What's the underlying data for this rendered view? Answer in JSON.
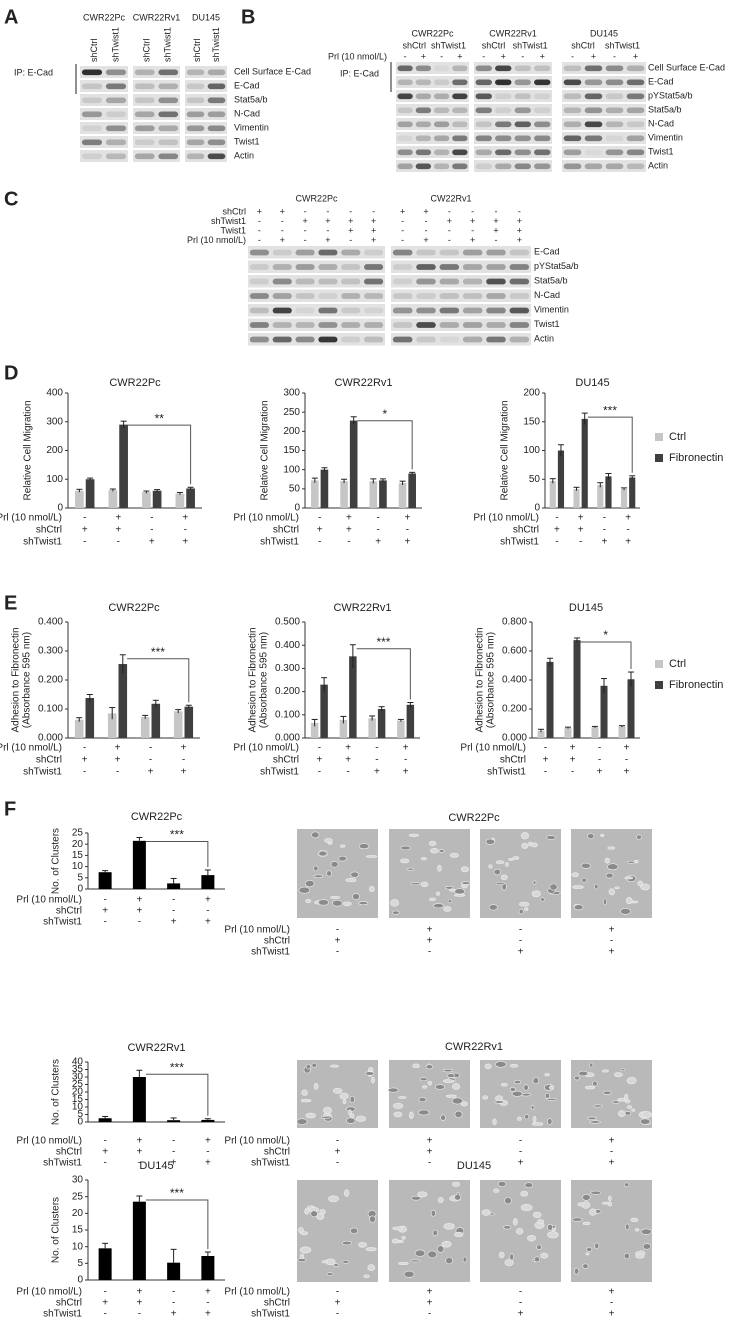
{
  "panel_labels": [
    "A",
    "B",
    "C",
    "D",
    "E",
    "F"
  ],
  "blot_a": {
    "cell_lines": [
      "CWR22Pc",
      "CWR22Rv1",
      "DU145"
    ],
    "lanes": [
      "shCtrl",
      "shTwist1"
    ],
    "ip_label": "IP: E-Cad",
    "bands": [
      "Cell Surface E-Cad",
      "E-Cad",
      "Stat5a/b",
      "N-Cad",
      "Vimentin",
      "Twist1",
      "Actin"
    ]
  },
  "blot_b": {
    "cell_lines": [
      "CWR22Pc",
      "CWR22Rv1",
      "DU145"
    ],
    "lanes": [
      "shCtrl",
      "shTwist1"
    ],
    "treatment_label": "Prl (10 nmol/L)",
    "treatment": [
      "-",
      "+",
      "-",
      "+"
    ],
    "ip_label": "IP: E-Cad",
    "bands": [
      "Cell Surface E-Cad",
      "E-Cad",
      "pYStat5a/b",
      "Stat5a/b",
      "N-Cad",
      "Vimentin",
      "Twist1",
      "Actin"
    ]
  },
  "blot_c": {
    "cell_lines": [
      "CWR22Pc",
      "CW22Rv1"
    ],
    "rows": [
      {
        "label": "shCtrl",
        "signs": [
          "+",
          "+",
          "-",
          "-",
          "-",
          "-"
        ]
      },
      {
        "label": "shTwist1",
        "signs": [
          "-",
          "-",
          "+",
          "+",
          "+",
          "+"
        ]
      },
      {
        "label": "Twist1",
        "signs": [
          "-",
          "-",
          "-",
          "-",
          "+",
          "+"
        ]
      },
      {
        "label": "Prl (10 nmol/L)",
        "signs": [
          "-",
          "+",
          "-",
          "+",
          "-",
          "+"
        ]
      }
    ],
    "bands": [
      "E-Cad",
      "pYStat5a/b",
      "Stat5a/b",
      "N-Cad",
      "Vimentin",
      "Twist1",
      "Actin"
    ]
  },
  "conditions": [
    {
      "label": "Prl (10 nmol/L)",
      "signs": [
        "-",
        "+",
        "-",
        "+"
      ]
    },
    {
      "label": "shCtrl",
      "signs": [
        "+",
        "+",
        "-",
        "-"
      ]
    },
    {
      "label": "shTwist1",
      "signs": [
        "-",
        "-",
        "+",
        "+"
      ]
    }
  ],
  "micrographs": {
    "titles": [
      "CWR22Pc",
      "CWR22Rv1",
      "DU145"
    ]
  },
  "chart_data": [
    {
      "type": "bar",
      "title": "CWR22Pc",
      "ylabel": "Relative Cell Migration",
      "ylim": [
        0,
        400
      ],
      "yticks": [
        0,
        100,
        200,
        300,
        400
      ],
      "significance": "**",
      "series": [
        {
          "color": "#c6c6c6",
          "values": [
            60,
            62,
            55,
            50
          ],
          "errors": [
            5,
            4,
            4,
            4
          ]
        },
        {
          "color": "#3f3f3f",
          "values": [
            100,
            290,
            60,
            68
          ],
          "errors": [
            4,
            12,
            4,
            4
          ]
        }
      ]
    },
    {
      "type": "bar",
      "title": "CWR22Rv1",
      "ylabel": "Relative Cell Migration",
      "ylim": [
        0,
        300
      ],
      "yticks": [
        0,
        50,
        100,
        150,
        200,
        250,
        300
      ],
      "significance": "*",
      "series": [
        {
          "color": "#c6c6c6",
          "values": [
            72,
            70,
            70,
            65
          ],
          "errors": [
            6,
            5,
            6,
            5
          ]
        },
        {
          "color": "#3f3f3f",
          "values": [
            100,
            228,
            72,
            90
          ],
          "errors": [
            5,
            10,
            4,
            3
          ]
        }
      ]
    },
    {
      "type": "bar",
      "title": "DU145",
      "ylabel": "Relative Cell Migration",
      "ylim": [
        0,
        200
      ],
      "yticks": [
        0,
        50,
        100,
        150,
        200
      ],
      "significance": "***",
      "series": [
        {
          "name": "Ctrl",
          "color": "#c6c6c6",
          "values": [
            47,
            33,
            40,
            33
          ],
          "errors": [
            4,
            3,
            4,
            2
          ]
        },
        {
          "name": "Fibronectin",
          "color": "#3f3f3f",
          "values": [
            100,
            155,
            55,
            53
          ],
          "errors": [
            10,
            10,
            5,
            3
          ]
        }
      ]
    },
    {
      "type": "bar",
      "title": "CWR22Pc",
      "ylabel": [
        "Adhesion to Fibronectin",
        "(Absorbance 595 nm)"
      ],
      "ylim": [
        0,
        0.4
      ],
      "yticks": [
        {
          "value": 0,
          "label": "0.000"
        },
        {
          "value": 0.1,
          "label": "0.100"
        },
        {
          "value": 0.2,
          "label": "0.200"
        },
        {
          "value": 0.3,
          "label": "0.300"
        },
        {
          "value": 0.4,
          "label": "0.400"
        }
      ],
      "significance": "***",
      "series": [
        {
          "color": "#c6c6c6",
          "values": [
            0.063,
            0.085,
            0.072,
            0.092
          ],
          "errors": [
            0.007,
            0.02,
            0.006,
            0.006
          ]
        },
        {
          "color": "#3f3f3f",
          "values": [
            0.138,
            0.255,
            0.118,
            0.108
          ],
          "errors": [
            0.012,
            0.032,
            0.012,
            0.005
          ]
        }
      ]
    },
    {
      "type": "bar",
      "title": "CWR22Rv1",
      "ylabel": [
        "Adhesion to Fibronectin",
        "(Absorbance 595 nm)"
      ],
      "ylim": [
        0,
        0.5
      ],
      "yticks": [
        {
          "value": 0,
          "label": "0.000"
        },
        {
          "value": 0.1,
          "label": "0.100"
        },
        {
          "value": 0.2,
          "label": "0.200"
        },
        {
          "value": 0.3,
          "label": "0.300"
        },
        {
          "value": 0.4,
          "label": "0.400"
        },
        {
          "value": 0.5,
          "label": "0.500"
        }
      ],
      "significance": "***",
      "series": [
        {
          "color": "#c6c6c6",
          "values": [
            0.065,
            0.078,
            0.085,
            0.075
          ],
          "errors": [
            0.015,
            0.015,
            0.01,
            0.005
          ]
        },
        {
          "color": "#3f3f3f",
          "values": [
            0.23,
            0.352,
            0.125,
            0.143
          ],
          "errors": [
            0.03,
            0.05,
            0.01,
            0.01
          ]
        }
      ]
    },
    {
      "type": "bar",
      "title": "DU145",
      "ylabel": [
        "Adhesion to Fibronectin",
        "(Absorbance 595 nm)"
      ],
      "ylim": [
        0,
        0.8
      ],
      "yticks": [
        {
          "value": 0,
          "label": "0.000"
        },
        {
          "value": 0.2,
          "label": "0.200"
        },
        {
          "value": 0.4,
          "label": "0.400"
        },
        {
          "value": 0.6,
          "label": "0.600"
        },
        {
          "value": 0.8,
          "label": "0.800"
        }
      ],
      "significance": "*",
      "series": [
        {
          "name": "Ctrl",
          "color": "#c6c6c6",
          "values": [
            0.05,
            0.07,
            0.075,
            0.08
          ],
          "errors": [
            0.01,
            0.005,
            0.005,
            0.005
          ]
        },
        {
          "name": "Fibronectin",
          "color": "#3f3f3f",
          "values": [
            0.525,
            0.675,
            0.36,
            0.405
          ],
          "errors": [
            0.025,
            0.015,
            0.05,
            0.05
          ]
        }
      ]
    },
    {
      "type": "bar",
      "title": "CWR22Pc",
      "ylabel": "No. of Clusters",
      "ylim": [
        0,
        25
      ],
      "yticks": [
        0,
        5,
        10,
        15,
        20,
        25
      ],
      "significance": "***",
      "series": [
        {
          "color": "#000000",
          "values": [
            7.5,
            21.5,
            2.5,
            6.2
          ],
          "errors": [
            0.7,
            1.5,
            2.2,
            2.3
          ]
        }
      ]
    },
    {
      "type": "bar",
      "title": "CWR22Rv1",
      "ylabel": "No. of Clusters",
      "ylim": [
        0,
        40
      ],
      "yticks": [
        0,
        5,
        10,
        15,
        20,
        25,
        30,
        35,
        40
      ],
      "significance": "***",
      "series": [
        {
          "color": "#000000",
          "values": [
            2.5,
            30,
            1.2,
            1.4
          ],
          "errors": [
            1.2,
            4.5,
            1.5,
            0.8
          ]
        }
      ]
    },
    {
      "type": "bar",
      "title": "DU145",
      "ylabel": "No. of Clusters",
      "ylim": [
        0,
        30
      ],
      "yticks": [
        0,
        5,
        10,
        15,
        20,
        25,
        30
      ],
      "significance": "***",
      "series": [
        {
          "color": "#000000",
          "values": [
            9.5,
            23.5,
            5.2,
            7.2
          ],
          "errors": [
            1.5,
            1.7,
            4,
            1.2
          ]
        }
      ]
    }
  ]
}
